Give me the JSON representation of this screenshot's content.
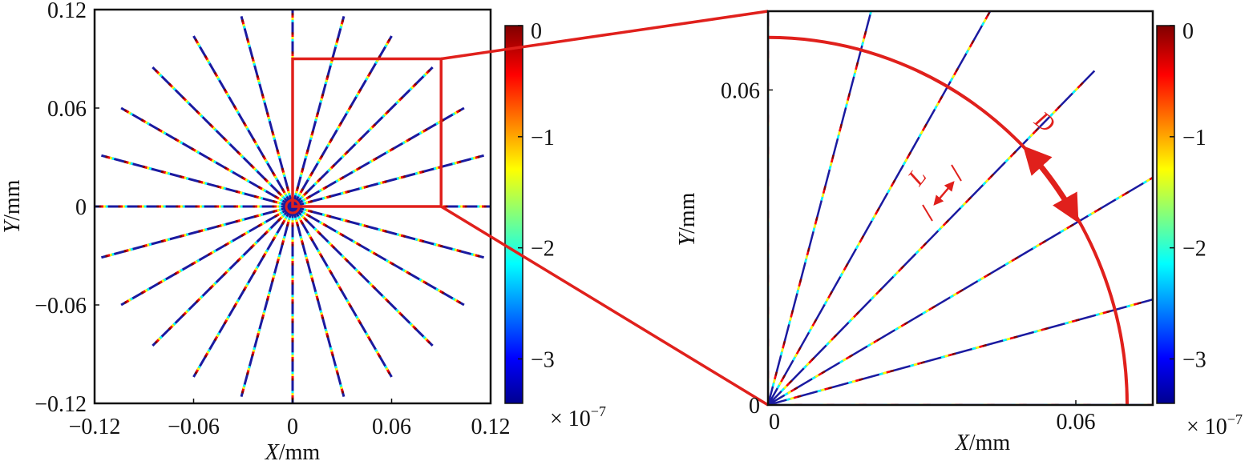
{
  "chart_data": [
    {
      "type": "line",
      "panel": "full-view",
      "description_lines": "24 radial lines from origin, every 15 degrees, colored by field value",
      "angles_deg": [
        0,
        15,
        30,
        45,
        60,
        75,
        90,
        105,
        120,
        135,
        150,
        165,
        180,
        195,
        210,
        225,
        240,
        255,
        270,
        285,
        300,
        315,
        330,
        345
      ],
      "line_length_mm": 0.12,
      "x_ticks": [
        "−0.12",
        "−0.06",
        "0",
        "0.06",
        "0.12"
      ],
      "x_tick_values": [
        -0.12,
        -0.06,
        0,
        0.06,
        0.12
      ],
      "y_ticks": [
        "0.12",
        "0.06",
        "0",
        "−0.06",
        "−0.12"
      ],
      "y_tick_values": [
        0.12,
        0.06,
        0,
        -0.06,
        -0.12
      ],
      "xlim": [
        -0.12,
        0.12
      ],
      "ylim": [
        -0.12,
        0.12
      ],
      "xlabel_var": "X",
      "xlabel_unit": "/mm",
      "ylabel_var": "Y",
      "ylabel_unit": "/mm",
      "zoom_box": {
        "x": [
          0,
          0.09
        ],
        "y": [
          0,
          0.09
        ]
      },
      "colorbar": {
        "ticks": [
          "0",
          "−1",
          "−2",
          "−3"
        ],
        "tick_values": [
          0,
          -1,
          -2,
          -3
        ],
        "range": [
          -3.4,
          0
        ],
        "scale_label": "× 10",
        "scale_exp": "−7"
      }
    },
    {
      "type": "line",
      "panel": "zoom-view",
      "angles_deg": [
        0,
        15,
        30,
        45,
        60,
        75,
        90
      ],
      "line_length_mm": 0.09,
      "arc_radius_mm": 0.07,
      "xlim": [
        0,
        0.075
      ],
      "ylim": [
        0,
        0.075
      ],
      "x_ticks": [
        "0",
        "0.06"
      ],
      "x_tick_values": [
        0,
        0.06
      ],
      "y_ticks": [
        "0",
        "0.06"
      ],
      "y_tick_values": [
        0,
        0.06
      ],
      "xlabel_var": "X",
      "xlabel_unit": "/mm",
      "ylabel_var": "Y",
      "ylabel_unit": "/mm",
      "annotations": [
        {
          "text": "D",
          "meaning": "arc spacing between adjacent lines"
        },
        {
          "text": "L",
          "meaning": "period length along a line"
        }
      ],
      "colorbar": {
        "ticks": [
          "0",
          "−1",
          "−2",
          "−3"
        ],
        "tick_values": [
          0,
          -1,
          -2,
          -3
        ],
        "range": [
          -3.4,
          0
        ],
        "scale_label": "× 10",
        "scale_exp": "−7"
      }
    }
  ],
  "colors": {
    "frame": "#111111",
    "highlight": "#e0201c",
    "line_base": "#1a1aa0",
    "jet": [
      "#00008f",
      "#0000ff",
      "#00ffff",
      "#ffff00",
      "#ff0000",
      "#800000"
    ]
  }
}
